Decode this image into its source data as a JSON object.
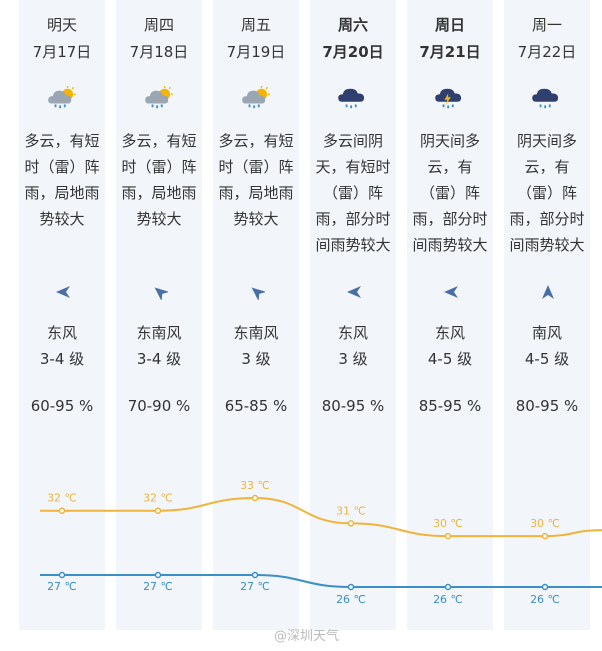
{
  "forecast": [
    {
      "day": "明天",
      "date": "7月17日",
      "icon": "cloud-sun-rain-icon",
      "desc": "多云，有短时（雷）阵雨，局地雨势较大",
      "wind_dir": "东风",
      "wind_dir_icon": "arrow-east-icon",
      "wind_level": "3-4 级",
      "humidity": "60-95 %",
      "high": "32 ℃",
      "low": "27 ℃",
      "bold": false
    },
    {
      "day": "周四",
      "date": "7月18日",
      "icon": "cloud-sun-rain-icon",
      "desc": "多云，有短时（雷）阵雨，局地雨势较大",
      "wind_dir": "东南风",
      "wind_dir_icon": "arrow-southeast-icon",
      "wind_level": "3-4 级",
      "humidity": "70-90 %",
      "high": "32 ℃",
      "low": "27 ℃",
      "bold": false
    },
    {
      "day": "周五",
      "date": "7月19日",
      "icon": "cloud-sun-rain-icon",
      "desc": "多云，有短时（雷）阵雨，局地雨势较大",
      "wind_dir": "东南风",
      "wind_dir_icon": "arrow-southeast-icon",
      "wind_level": "3 级",
      "humidity": "65-85 %",
      "high": "33 ℃",
      "low": "27 ℃",
      "bold": false
    },
    {
      "day": "周六",
      "date": "7月20日",
      "icon": "cloud-rain-icon",
      "desc": "多云间阴天，有短时（雷）阵雨，部分时间雨势较大",
      "wind_dir": "东风",
      "wind_dir_icon": "arrow-east-icon",
      "wind_level": "3 级",
      "humidity": "80-95 %",
      "high": "31 ℃",
      "low": "26 ℃",
      "bold": true
    },
    {
      "day": "周日",
      "date": "7月21日",
      "icon": "cloud-thunder-rain-icon",
      "desc": "阴天间多云，有（雷）阵雨，部分时间雨势较大",
      "wind_dir": "东风",
      "wind_dir_icon": "arrow-east-icon",
      "wind_level": "4-5 级",
      "humidity": "85-95 %",
      "high": "30 ℃",
      "low": "26 ℃",
      "bold": true
    },
    {
      "day": "周一",
      "date": "7月22日",
      "icon": "cloud-rain-icon",
      "desc": "阴天间多云，有（雷）阵雨，部分时间雨势较大",
      "wind_dir": "南风",
      "wind_dir_icon": "arrow-south-icon",
      "wind_level": "4-5 级",
      "humidity": "80-95 %",
      "high": "30 ℃",
      "low": "26 ℃",
      "bold": false
    }
  ],
  "chart_data": {
    "type": "line",
    "categories": [
      "7月17日",
      "7月18日",
      "7月19日",
      "7月20日",
      "7月21日",
      "7月22日"
    ],
    "series": [
      {
        "values": [
          32,
          32,
          33,
          31,
          30,
          30
        ],
        "color": "#f0b43c"
      },
      {
        "values": [
          27,
          27,
          27,
          26,
          26,
          26
        ],
        "color": "#3a8fc9"
      }
    ],
    "ylim": [
      26,
      33
    ]
  },
  "colors": {
    "high": "#f0b43c",
    "low": "#3a8fc9",
    "column_bg": "#f2f6fa",
    "text": "#333333"
  },
  "watermark": "@深圳天气"
}
